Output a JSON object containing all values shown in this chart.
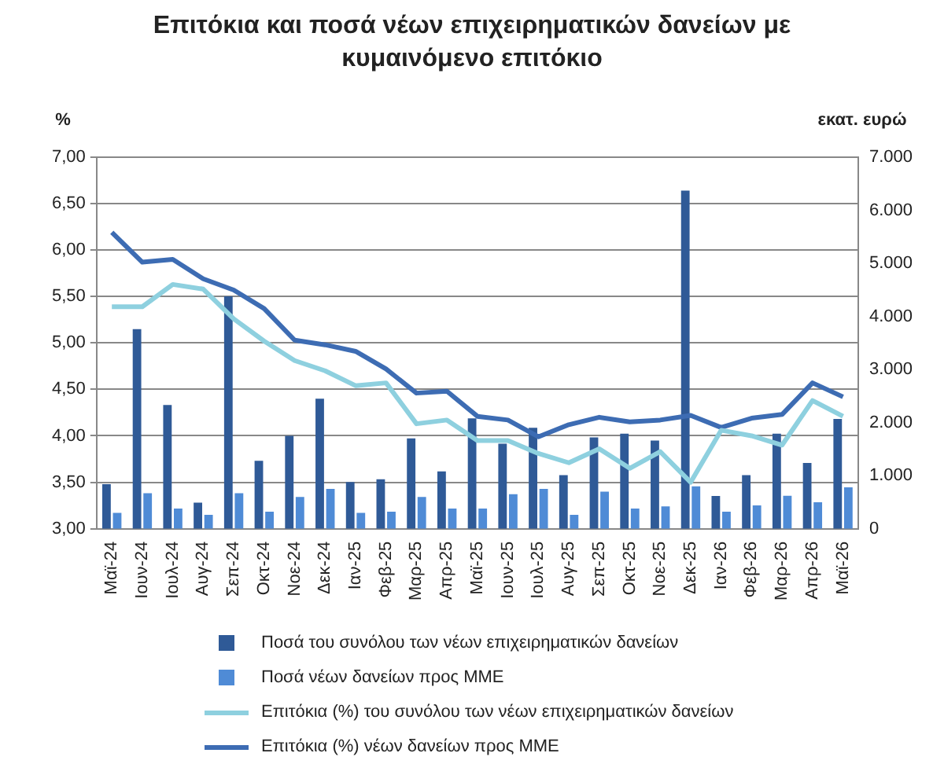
{
  "chart_data": {
    "type": "bar",
    "title": "Επιτόκια και ποσά νέων επιχειρηματικών δανείων με κυμαινόμενο επιτόκιο",
    "ylabel": "%",
    "y2label": "εκατ. ευρώ",
    "categories": [
      "Μαϊ-24",
      "Ιουν-24",
      "Ιουλ-24",
      "Αυγ-24",
      "Σεπ-24",
      "Οκτ-24",
      "Νοε-24",
      "Δεκ-24",
      "Ιαν-25",
      "Φεβ-25",
      "Μαρ-25",
      "Απρ-25",
      "Μαϊ-25",
      "Ιουν-25",
      "Ιουλ-25",
      "Αυγ-25",
      "Σεπ-25",
      "Οκτ-25",
      "Νοε-25",
      "Δεκ-25",
      "Ιαν-26",
      "Φεβ-26",
      "Μαρ-26",
      "Απρ-26",
      "Μαϊ-26"
    ],
    "series": [
      {
        "name": "Ποσά του συνόλου των νέων επιχειρηματικών δανείων",
        "axis": "y2",
        "color": "#2f5a97",
        "values": [
          840,
          3760,
          2330,
          490,
          4380,
          1280,
          1750,
          2450,
          880,
          930,
          1700,
          1080,
          2080,
          1600,
          1900,
          1010,
          1720,
          1790,
          1660,
          6370,
          615,
          1010,
          1790,
          1240,
          2070
        ]
      },
      {
        "name": "Ποσά νέων δανείων προς ΜΜΕ",
        "axis": "y2",
        "color": "#4f8bd6",
        "values": [
          300,
          670,
          380,
          260,
          670,
          320,
          600,
          750,
          300,
          320,
          600,
          380,
          380,
          650,
          750,
          260,
          700,
          380,
          420,
          800,
          320,
          440,
          620,
          500,
          780
        ]
      },
      {
        "name": "Επιτόκια (%) του συνόλου των νέων επιχειρηματικών δανείων",
        "type": "line",
        "axis": "y",
        "color": "#8ed0df",
        "values": [
          5.39,
          5.39,
          5.63,
          5.58,
          5.26,
          5.02,
          4.81,
          4.7,
          4.54,
          4.57,
          4.13,
          4.17,
          3.95,
          3.95,
          3.81,
          3.71,
          3.86,
          3.65,
          3.83,
          3.5,
          4.06,
          4.0,
          3.9,
          4.38,
          4.21
        ]
      },
      {
        "name": "Επιτόκια (%) νέων δανείων προς ΜΜΕ",
        "type": "line",
        "axis": "y",
        "color": "#3d6cb3",
        "values": [
          6.19,
          5.87,
          5.9,
          5.69,
          5.57,
          5.37,
          5.03,
          4.98,
          4.91,
          4.72,
          4.46,
          4.48,
          4.21,
          4.17,
          3.99,
          4.12,
          4.2,
          4.15,
          4.17,
          4.22,
          4.09,
          4.19,
          4.23,
          4.57,
          4.42
        ]
      }
    ],
    "ylim": [
      3,
      7
    ],
    "yticks": [
      {
        "value": 3,
        "label": "3,00"
      },
      {
        "value": 3.5,
        "label": "3,50"
      },
      {
        "value": 4,
        "label": "4,00"
      },
      {
        "value": 4.5,
        "label": "4,50"
      },
      {
        "value": 5,
        "label": "5,00"
      },
      {
        "value": 5.5,
        "label": "5,50"
      },
      {
        "value": 6,
        "label": "6,00"
      },
      {
        "value": 6.5,
        "label": "6,50"
      },
      {
        "value": 7,
        "label": "7,00"
      }
    ],
    "y2lim": [
      0,
      7000
    ],
    "y2ticks": [
      {
        "value": 0,
        "label": "0"
      },
      {
        "value": 1000,
        "label": "1.000"
      },
      {
        "value": 2000,
        "label": "2.000"
      },
      {
        "value": 3000,
        "label": "3.000"
      },
      {
        "value": 4000,
        "label": "4.000"
      },
      {
        "value": 5000,
        "label": "5.000"
      },
      {
        "value": 6000,
        "label": "6.000"
      },
      {
        "value": 7000,
        "label": "7.000"
      }
    ],
    "grid": "y",
    "legend": "bottom",
    "marker": "none",
    "line_style": "solid"
  }
}
